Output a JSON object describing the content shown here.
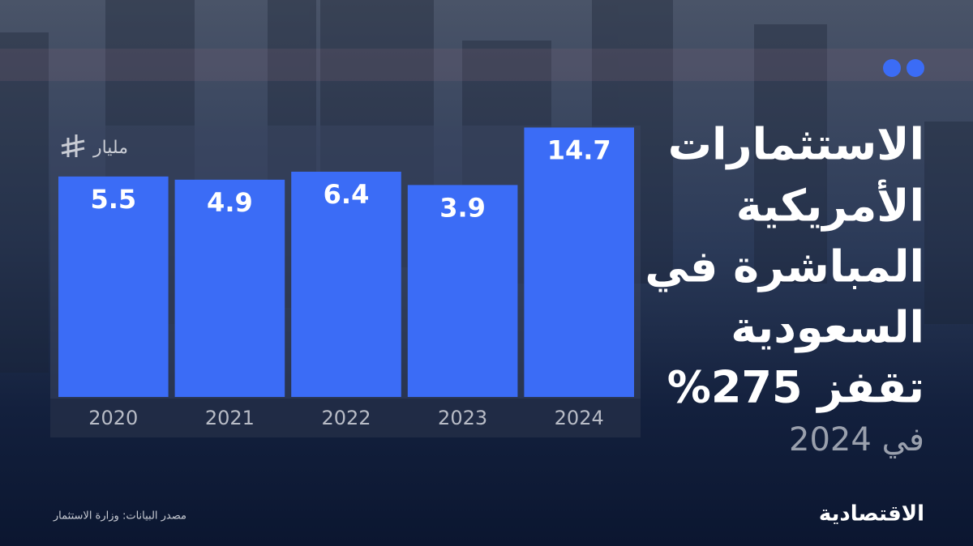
{
  "chart_data": {
    "type": "bar",
    "title_lines": [
      "الاستثمارات",
      "الأمريكية",
      "المباشرة في",
      "السعودية",
      "تقفز 275%"
    ],
    "subtitle": "في 2024",
    "unit_label": "مليار",
    "categories": [
      "2020",
      "2021",
      "2022",
      "2023",
      "2024"
    ],
    "values": [
      5.5,
      4.9,
      6.4,
      3.9,
      14.7
    ],
    "color": "#3b6cf6"
  },
  "footer": {
    "source": "مصدر البيانات: وزارة الاستثمار",
    "logo": "الاقتصادية"
  }
}
